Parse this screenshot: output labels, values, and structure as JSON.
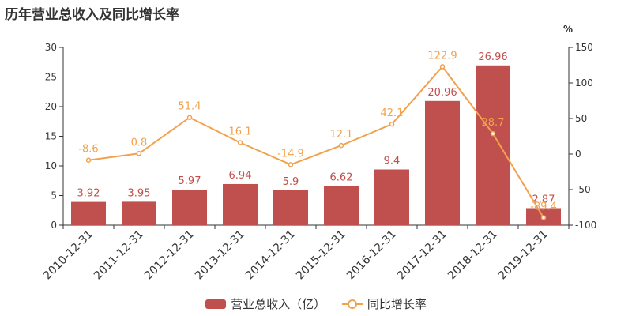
{
  "title": "历年营业总收入及同比增长率",
  "right_axis_unit": "%",
  "colors": {
    "bar": "#c0504d",
    "line": "#f2a14c",
    "axis": "#333333",
    "grid": "#e6e6e6"
  },
  "legend": {
    "bar_label": "营业总收入（亿）",
    "line_label": "同比增长率"
  },
  "chart_data": {
    "type": "bar",
    "categories": [
      "2010-12-31",
      "2011-12-31",
      "2012-12-31",
      "2013-12-31",
      "2014-12-31",
      "2015-12-31",
      "2016-12-31",
      "2017-12-31",
      "2018-12-31",
      "2019-12-31"
    ],
    "series": [
      {
        "name": "营业总收入（亿）",
        "type": "bar",
        "axis": "left",
        "values": [
          3.92,
          3.95,
          5.97,
          6.94,
          5.9,
          6.62,
          9.4,
          20.96,
          26.96,
          2.87
        ],
        "labels": [
          "3.92",
          "3.95",
          "5.97",
          "6.94",
          "5.9",
          "6.62",
          "9.4",
          "20.96",
          "26.96",
          "2.87"
        ]
      },
      {
        "name": "同比增长率",
        "type": "line",
        "axis": "right",
        "values": [
          -8.6,
          0.8,
          51.4,
          16.1,
          -14.9,
          12.1,
          42.1,
          122.9,
          28.7,
          -89.4
        ],
        "labels": [
          "-8.6",
          "0.8",
          "51.4",
          "16.1",
          "-14.9",
          "12.1",
          "42.1",
          "122.9",
          "28.7",
          "-89.4"
        ]
      }
    ],
    "y_left": {
      "min": 0,
      "max": 30,
      "ticks": [
        0,
        5,
        10,
        15,
        20,
        25,
        30
      ]
    },
    "y_right": {
      "min": -100,
      "max": 150,
      "ticks": [
        -100,
        -50,
        0,
        50,
        100,
        150
      ]
    },
    "grid": false,
    "legend_position": "bottom"
  }
}
